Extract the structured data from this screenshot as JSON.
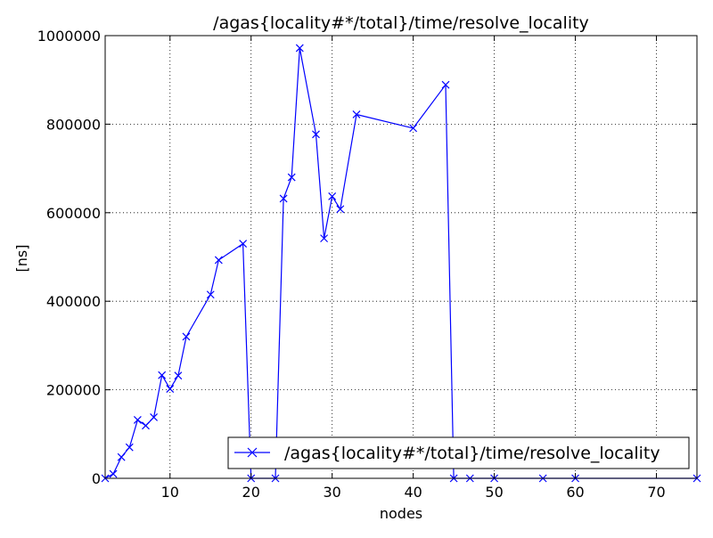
{
  "chart_data": {
    "type": "line",
    "title": "/agas{locality#*/total}/time/resolve_locality",
    "xlabel": "nodes",
    "ylabel": "[ns]",
    "xlim": [
      2,
      75
    ],
    "ylim": [
      0,
      1000000
    ],
    "x_ticks": [
      10,
      20,
      30,
      40,
      50,
      60,
      70
    ],
    "y_ticks": [
      0,
      200000,
      400000,
      600000,
      800000,
      1000000
    ],
    "x_tick_labels": [
      "10",
      "20",
      "30",
      "40",
      "50",
      "60",
      "70"
    ],
    "y_tick_labels": [
      "0",
      "200000",
      "400000",
      "600000",
      "800000",
      "1000000"
    ],
    "grid": true,
    "legend_position": "lower-right",
    "series": [
      {
        "name": "/agas{locality#*/total}/time/resolve_locality",
        "color": "#0000ff",
        "marker": "x",
        "x": [
          2,
          3,
          4,
          5,
          6,
          7,
          8,
          9,
          10,
          11,
          12,
          15,
          16,
          19,
          20,
          23,
          24,
          25,
          26,
          28,
          29,
          30,
          31,
          33,
          40,
          44,
          45,
          47,
          50,
          56,
          60,
          75
        ],
        "y": [
          0,
          10000,
          48000,
          70000,
          132000,
          119000,
          138000,
          233000,
          202000,
          232000,
          320000,
          415000,
          493000,
          530000,
          0,
          0,
          632000,
          680000,
          972000,
          777000,
          542000,
          637000,
          608000,
          822000,
          791000,
          889000,
          0,
          0,
          0,
          0,
          0,
          0
        ]
      }
    ]
  }
}
